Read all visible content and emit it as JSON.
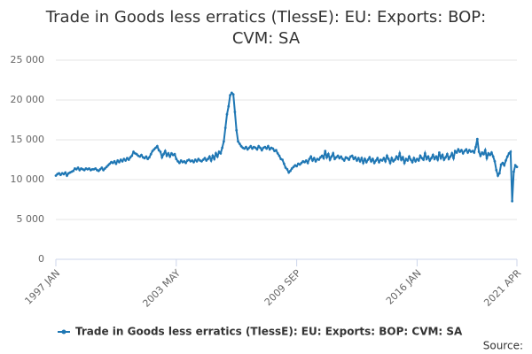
{
  "chart_data": {
    "type": "line",
    "title": "Trade in Goods less erratics (TlessE): EU: Exports: BOP: CVM: SA",
    "source": "Source:",
    "categories": [
      "1997 JAN",
      null,
      null,
      null,
      null,
      null,
      null,
      null,
      null,
      null,
      null,
      null,
      null,
      null,
      null,
      null,
      null,
      null,
      null,
      null,
      null,
      null,
      null,
      null,
      null,
      null,
      null,
      null,
      null,
      null,
      null,
      null,
      null,
      null,
      null,
      null,
      null,
      null,
      null,
      null,
      null,
      null,
      null,
      null,
      null,
      null,
      null,
      null,
      null,
      null,
      null,
      null,
      null,
      null,
      null,
      null,
      null,
      null,
      null,
      null,
      null,
      null,
      null,
      null,
      null,
      null,
      null,
      null,
      null,
      null,
      null,
      null,
      null,
      null,
      null,
      null,
      "2003 MAY",
      null,
      null,
      null,
      null,
      null,
      null,
      null,
      null,
      null,
      null,
      null,
      null,
      null,
      null,
      null,
      null,
      null,
      null,
      null,
      null,
      null,
      null,
      null,
      null,
      null,
      null,
      null,
      null,
      null,
      null,
      null,
      null,
      null,
      null,
      null,
      null,
      null,
      null,
      null,
      null,
      null,
      null,
      null,
      null,
      null,
      null,
      null,
      null,
      null,
      null,
      null,
      null,
      null,
      null,
      null,
      null,
      null,
      null,
      null,
      null,
      null,
      null,
      null,
      null,
      null,
      null,
      null,
      null,
      null,
      null,
      null,
      null,
      null,
      null,
      null,
      "2009 SEP",
      null,
      null,
      null,
      null,
      null,
      null,
      null,
      null,
      null,
      null,
      null,
      null,
      null,
      null,
      null,
      null,
      null,
      null,
      null,
      null,
      null,
      null,
      null,
      null,
      null,
      null,
      null,
      null,
      null,
      null,
      null,
      null,
      null,
      null,
      null,
      null,
      null,
      null,
      null,
      null,
      null,
      null,
      null,
      null,
      null,
      null,
      null,
      null,
      null,
      null,
      null,
      null,
      null,
      null,
      null,
      null,
      null,
      null,
      null,
      null,
      null,
      null,
      null,
      null,
      null,
      null,
      null,
      null,
      null,
      null,
      null,
      null,
      null,
      null,
      null,
      "2016 JAN",
      null,
      null,
      null,
      null,
      null,
      null,
      null,
      null,
      null,
      null,
      null,
      null,
      null,
      null,
      null,
      null,
      null,
      null,
      null,
      null,
      null,
      null,
      null,
      null,
      null,
      null,
      null,
      null,
      null,
      null,
      null,
      null,
      null,
      null,
      null,
      null,
      null,
      null,
      null,
      null,
      null,
      null,
      null,
      null,
      null,
      null,
      null,
      null,
      null,
      null,
      null,
      null,
      null,
      null,
      null,
      null,
      null,
      null,
      null,
      null,
      null,
      null,
      "2021 APR"
    ],
    "series": [
      {
        "name": "Trade in Goods less erratics (TlessE): EU: Exports: BOP: CVM: SA",
        "color": "#1f77b4",
        "values": [
          10500,
          10700,
          10800,
          10600,
          10800,
          10700,
          10900,
          10500,
          10800,
          10900,
          11000,
          11100,
          11400,
          11300,
          11500,
          11200,
          11400,
          11300,
          11200,
          11400,
          11300,
          11400,
          11200,
          11300,
          11300,
          11400,
          11200,
          11100,
          11300,
          11500,
          11200,
          11400,
          11600,
          11800,
          12000,
          12200,
          12100,
          12300,
          12000,
          12400,
          12200,
          12500,
          12300,
          12600,
          12400,
          12700,
          12500,
          12800,
          13000,
          13500,
          13300,
          13200,
          13000,
          12900,
          13100,
          12800,
          12700,
          12900,
          12600,
          12800,
          13200,
          13600,
          13800,
          14000,
          14200,
          13700,
          13500,
          12800,
          13200,
          13600,
          13000,
          13300,
          12900,
          13300,
          13100,
          13200,
          12600,
          12300,
          12100,
          12400,
          12200,
          12300,
          12100,
          12400,
          12500,
          12300,
          12400,
          12200,
          12500,
          12300,
          12600,
          12400,
          12300,
          12500,
          12700,
          12400,
          12600,
          12900,
          12400,
          13000,
          12600,
          13300,
          12900,
          13500,
          13300,
          14000,
          14800,
          16500,
          18200,
          19200,
          20600,
          20900,
          20700,
          18500,
          16200,
          14800,
          14500,
          14200,
          14000,
          13900,
          14100,
          13800,
          14000,
          14200,
          13900,
          14100,
          14000,
          13800,
          14200,
          14000,
          13700,
          14000,
          14100,
          13900,
          14200,
          13800,
          14000,
          13900,
          13600,
          13700,
          13300,
          13000,
          12600,
          12500,
          12000,
          11500,
          11300,
          10900,
          11100,
          11400,
          11600,
          11800,
          11700,
          12000,
          11900,
          12100,
          12300,
          12200,
          12400,
          12100,
          12600,
          12900,
          12400,
          12700,
          12300,
          12600,
          12500,
          12800,
          13000,
          12700,
          13600,
          12800,
          13200,
          12500,
          12900,
          13300,
          12600,
          12800,
          13000,
          12700,
          12900,
          12600,
          12400,
          12800,
          12700,
          12500,
          12900,
          13000,
          12600,
          12800,
          12400,
          12700,
          12300,
          12700,
          12100,
          12600,
          12200,
          12500,
          12800,
          12300,
          12600,
          12100,
          12400,
          12700,
          12200,
          12500,
          12400,
          12700,
          12300,
          13000,
          12600,
          12100,
          12700,
          12300,
          12500,
          12900,
          12600,
          13300,
          12500,
          12800,
          12100,
          12600,
          12400,
          12900,
          12500,
          12200,
          12700,
          12300,
          12600,
          12400,
          13000,
          12700,
          12500,
          13300,
          12600,
          12900,
          12400,
          12700,
          13100,
          12600,
          12900,
          12500,
          13400,
          12700,
          13100,
          12500,
          12800,
          13200,
          12600,
          12900,
          13300,
          12700,
          13600,
          13400,
          13800,
          13500,
          13700,
          13300,
          13600,
          13800,
          13400,
          13700,
          13500,
          13600,
          13400,
          14100,
          15100,
          13500,
          13000,
          13400,
          13200,
          13700,
          12700,
          13300,
          13100,
          13400,
          12900,
          12300,
          11200,
          10500,
          10800,
          11900,
          12100,
          11800,
          12400,
          12900,
          13300,
          13500,
          7300,
          11000,
          11800,
          11600
        ]
      }
    ],
    "ylim": [
      0,
      25000
    ],
    "yticks": [
      0,
      {
        "value": 5000,
        "label": "5 000"
      },
      {
        "value": 10000,
        "label": "10 000"
      },
      {
        "value": 15000,
        "label": "15 000"
      },
      {
        "value": 20000,
        "label": "20 000"
      },
      {
        "value": 25000,
        "label": "25 000"
      }
    ],
    "grid": true
  }
}
